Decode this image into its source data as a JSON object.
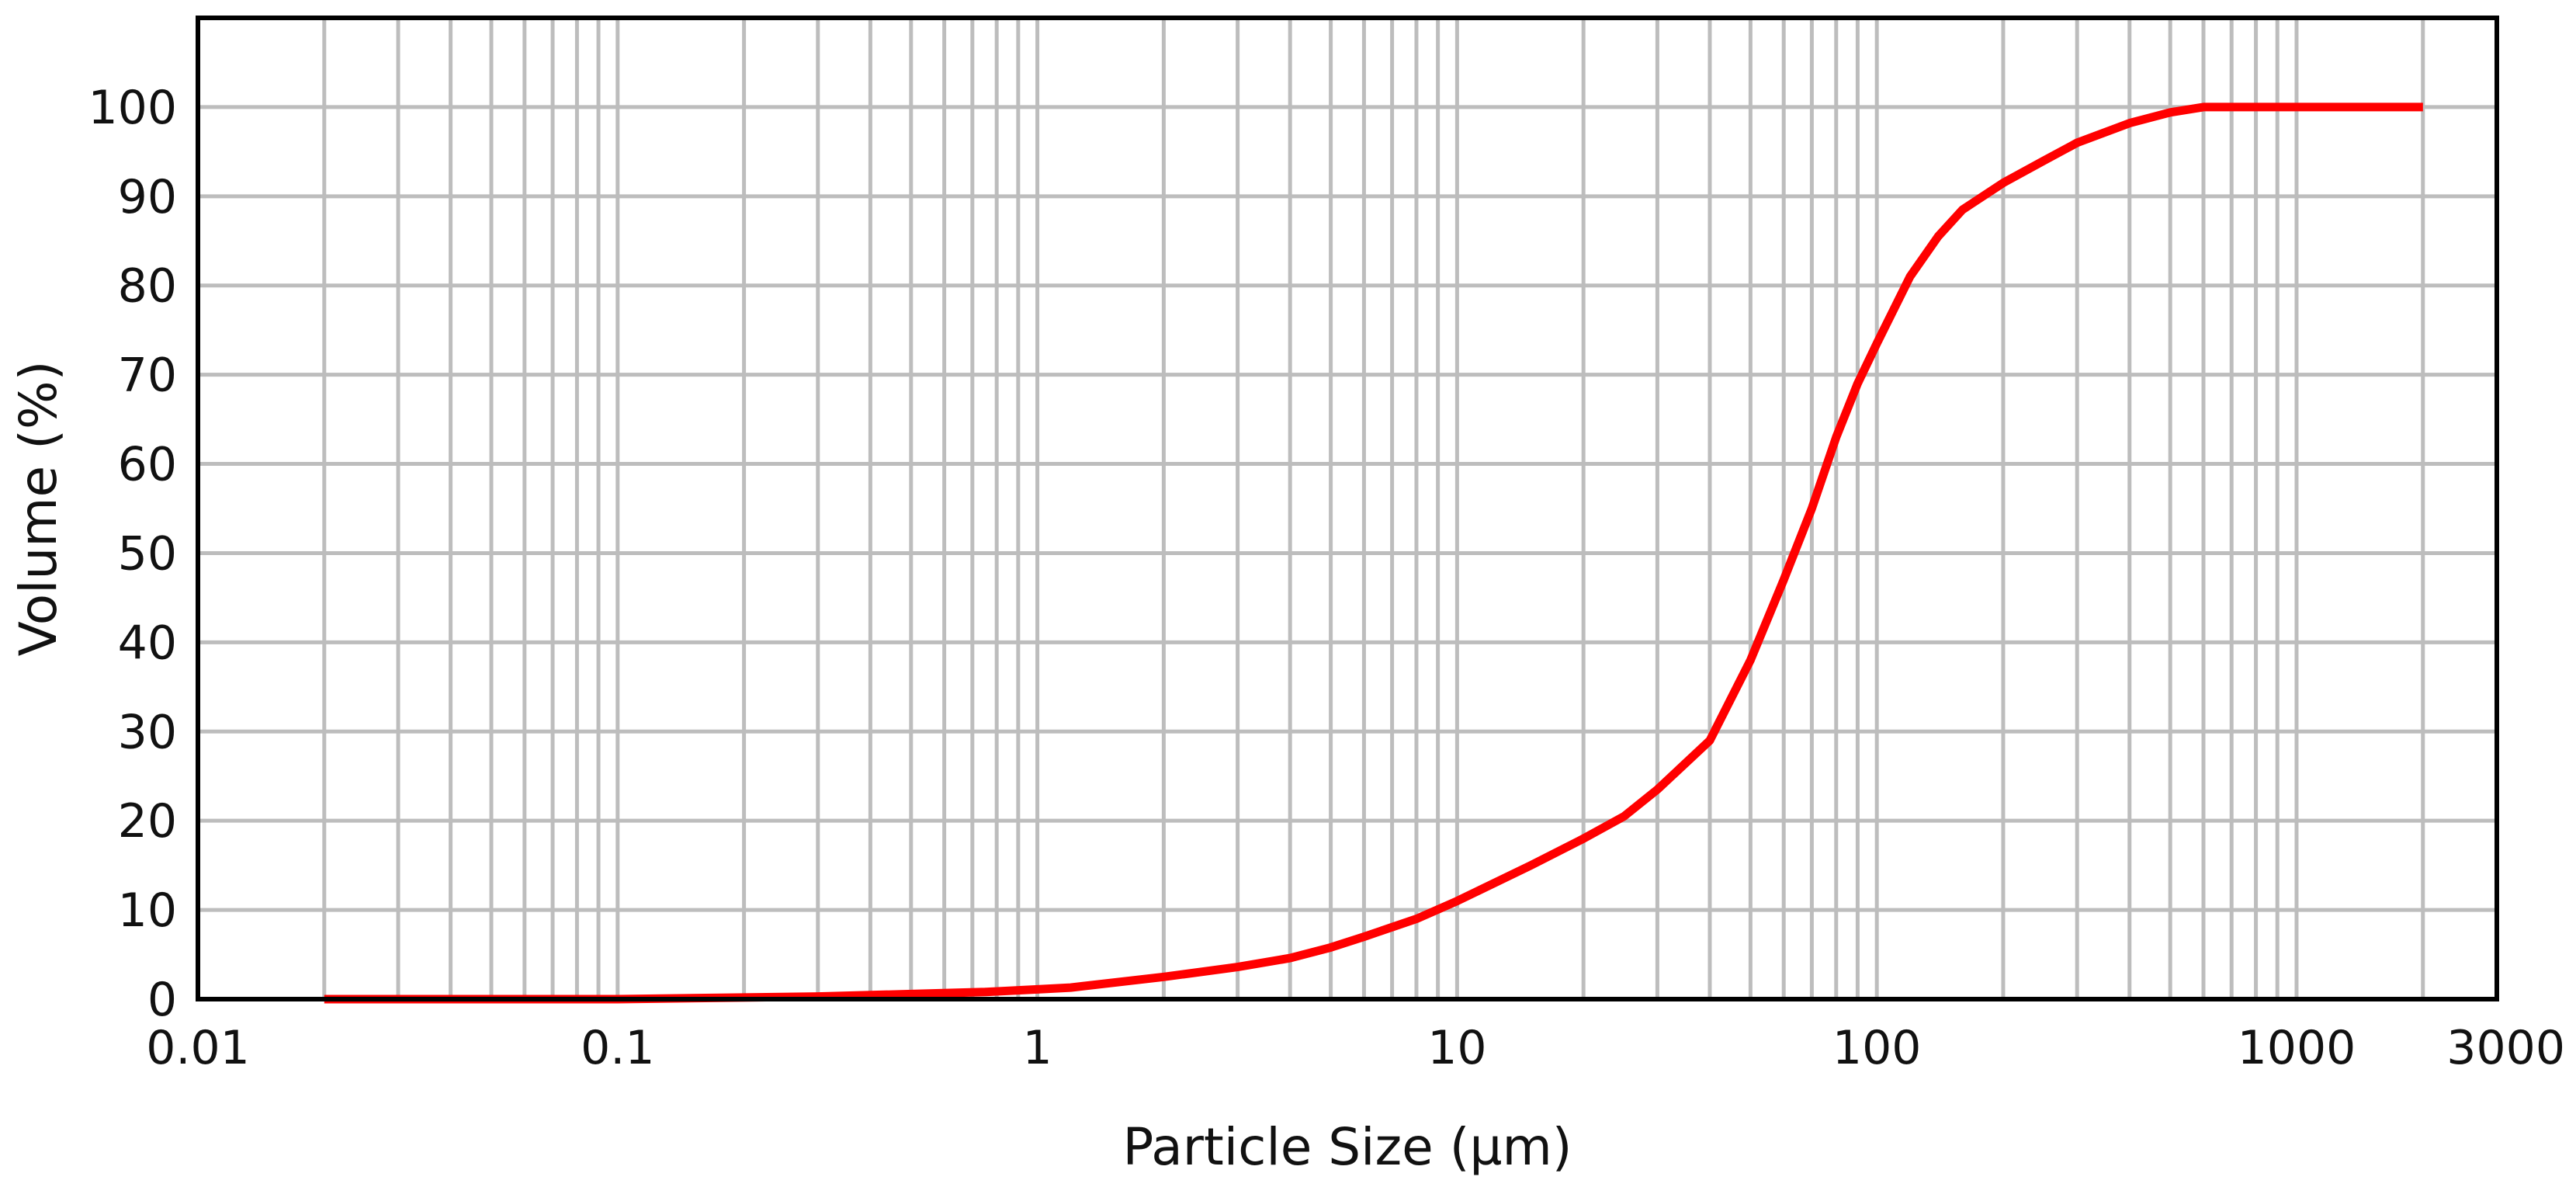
{
  "chart_data": {
    "type": "line",
    "title": "",
    "xlabel": "Particle Size (µm)",
    "ylabel": "Volume (%)",
    "x_scale": "log",
    "xlim": [
      0.01,
      3000
    ],
    "ylim": [
      0,
      110
    ],
    "x_ticks": [
      0.01,
      0.1,
      1,
      10,
      100,
      1000,
      3000
    ],
    "x_tick_labels": [
      "0.01",
      "0.1",
      "1",
      "10",
      "100",
      "1000",
      "3000"
    ],
    "y_ticks": [
      0,
      10,
      20,
      30,
      40,
      50,
      60,
      70,
      80,
      90,
      100
    ],
    "y_tick_labels": [
      "0",
      "10",
      "20",
      "30",
      "40",
      "50",
      "60",
      "70",
      "80",
      "90",
      "100"
    ],
    "grid": true,
    "legend": "none",
    "series": [
      {
        "color": "#ff0000",
        "x": [
          0.02,
          0.1,
          0.3,
          0.75,
          1,
          1.2,
          2,
          3,
          4,
          5,
          6,
          8,
          10,
          15,
          20,
          25,
          30,
          40,
          50,
          60,
          70,
          80,
          90,
          100,
          120,
          140,
          160,
          200,
          250,
          300,
          400,
          500,
          600,
          1000,
          2000
        ],
        "y": [
          0,
          0,
          0.3,
          0.8,
          1.1,
          1.3,
          2.5,
          3.6,
          4.6,
          5.8,
          7.0,
          9.0,
          11.0,
          15.0,
          18.0,
          20.5,
          23.5,
          29.0,
          38.0,
          47.0,
          55.0,
          63.0,
          69.0,
          73.5,
          81.0,
          85.5,
          88.5,
          91.5,
          94.0,
          96.0,
          98.2,
          99.4,
          100,
          100,
          100
        ]
      }
    ]
  }
}
